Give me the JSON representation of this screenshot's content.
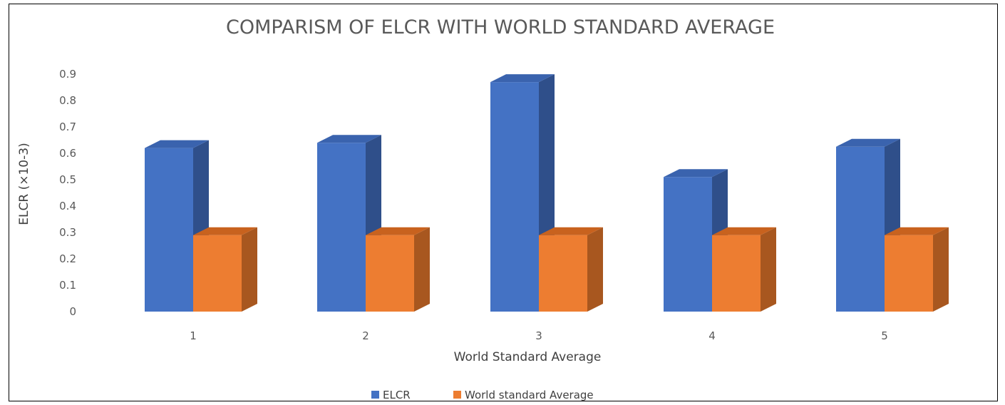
{
  "chart_data": {
    "type": "bar",
    "title": "COMPARISM OF ELCR WITH WORLD STANDARD AVERAGE",
    "xlabel": "World Standard Average",
    "ylabel": "ELCR (×10-3)",
    "categories": [
      "1",
      "2",
      "3",
      "4",
      "5"
    ],
    "series": [
      {
        "name": "ELCR",
        "values": [
          0.62,
          0.64,
          0.87,
          0.51,
          0.625
        ]
      },
      {
        "name": "World standard Average",
        "values": [
          0.29,
          0.29,
          0.29,
          0.29,
          0.29
        ]
      }
    ],
    "ylim": [
      0,
      0.9
    ],
    "yticks": [
      "0",
      "0.1",
      "0.2",
      "0.3",
      "0.4",
      "0.5",
      "0.6",
      "0.7",
      "0.8",
      "0.9"
    ],
    "grid": false,
    "legend_position": "bottom",
    "style": "3d-clustered-column",
    "colors": {
      "ELCR": {
        "front": "#4472C4",
        "side": "#2F4F8A",
        "top": "#3A63AE"
      },
      "World standard Average": {
        "front": "#ED7D31",
        "side": "#A8571F",
        "top": "#C8621E"
      }
    }
  }
}
